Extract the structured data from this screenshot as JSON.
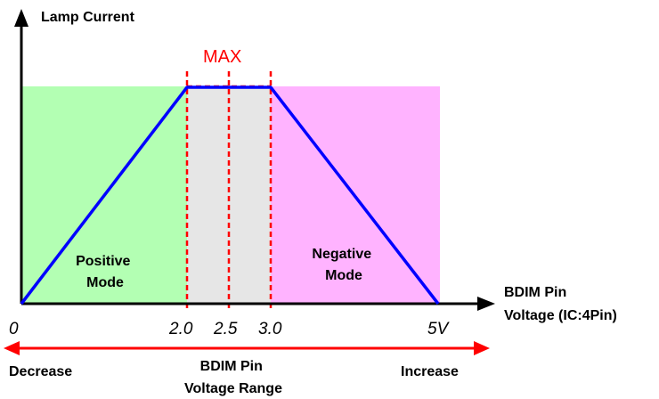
{
  "y_axis_label": "Lamp Current",
  "x_axis_label": [
    "BDIM Pin",
    "Voltage (IC:4Pin)"
  ],
  "max_label": "MAX",
  "regions": {
    "positive": {
      "label": [
        "Positive",
        "Mode"
      ],
      "color": "#b3ffb3"
    },
    "middle": {
      "color": "#e6e6e6"
    },
    "negative": {
      "label": [
        "Negative",
        "Mode"
      ],
      "color": "#ffb3ff"
    }
  },
  "ticks": [
    "0",
    "2.0",
    "2.5",
    "3.0",
    "5V"
  ],
  "range": {
    "left_label": "Decrease",
    "center_label": [
      "BDIM Pin",
      "Voltage Range"
    ],
    "right_label": "Increase"
  },
  "colors": {
    "curve": "#0000ff",
    "guide": "#ff0000",
    "axis": "#000000"
  }
}
